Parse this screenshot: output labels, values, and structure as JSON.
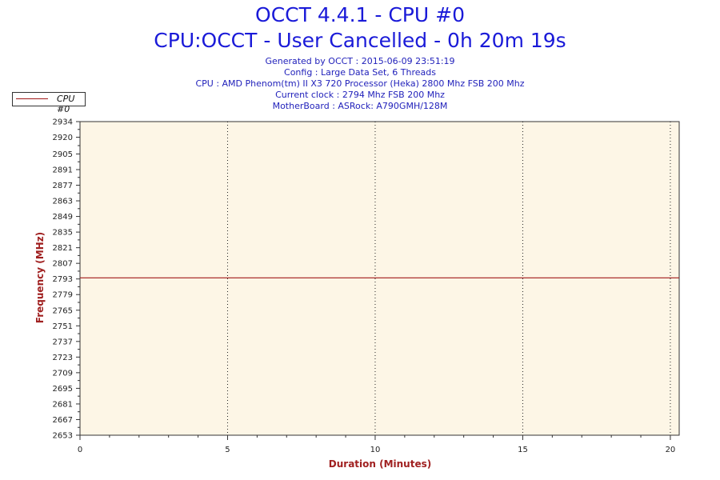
{
  "header": {
    "title": "OCCT 4.4.1 - CPU #0",
    "subtitle": "CPU:OCCT - User Cancelled - 0h 20m 19s",
    "info_lines": [
      "Generated by OCCT : 2015-06-09 23:51:19",
      "Config : Large Data Set, 6 Threads",
      "CPU : AMD Phenom(tm) II X3 720 Processor (Heka) 2800 Mhz FSB 200 Mhz",
      "Current clock : 2794 Mhz FSB 200 Mhz",
      "MotherBoard : ASRock: A790GMH/128M"
    ]
  },
  "legend": {
    "label": "CPU #0",
    "position": "top-left"
  },
  "colors": {
    "series": "#a01818",
    "plot_bg": "#fdf6e6",
    "axis_label": "#a02020",
    "title": "#1a1ad8"
  },
  "chart_data": {
    "type": "line",
    "xlabel": "Duration (Minutes)",
    "ylabel": "Frequency (MHz)",
    "xlim": [
      0,
      20.3
    ],
    "ylim": [
      2653,
      2934
    ],
    "x_ticks": [
      0,
      5,
      10,
      15,
      20
    ],
    "y_ticks": [
      2653,
      2667,
      2681,
      2695,
      2709,
      2723,
      2737,
      2751,
      2765,
      2779,
      2793,
      2807,
      2821,
      2835,
      2849,
      2863,
      2877,
      2891,
      2905,
      2920,
      2934
    ],
    "grid": "vertical dotted at major x ticks",
    "series": [
      {
        "name": "CPU #0",
        "x": [
          0,
          1,
          2,
          3,
          4,
          5,
          6,
          7,
          8,
          9,
          10,
          11,
          12,
          13,
          14,
          15,
          16,
          17,
          18,
          19,
          20,
          20.3
        ],
        "values": [
          2794,
          2794,
          2794,
          2794,
          2794,
          2794,
          2794,
          2794,
          2794,
          2794,
          2794,
          2794,
          2794,
          2794,
          2794,
          2794,
          2794,
          2794,
          2794,
          2794,
          2794,
          2794
        ]
      }
    ]
  }
}
